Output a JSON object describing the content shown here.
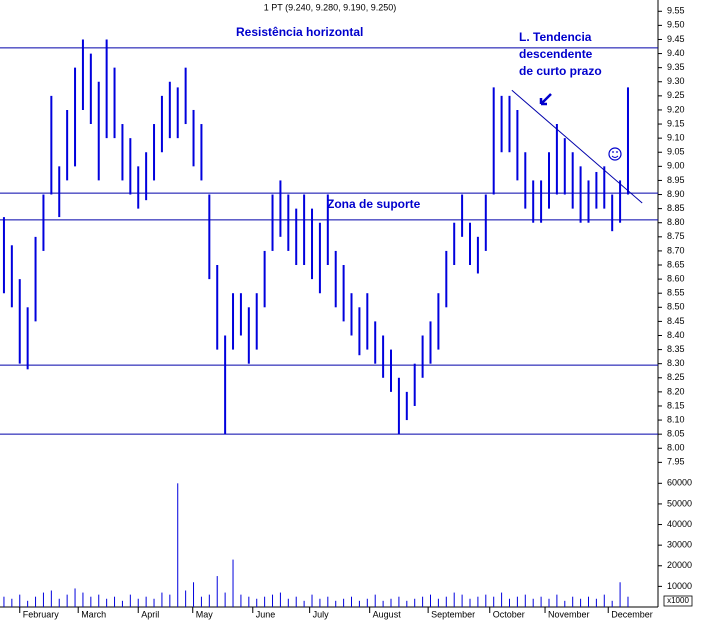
{
  "chart_data": {
    "type": "stock",
    "title": "1 PT (9.240, 9.280, 9.190, 9.250)",
    "annotations": {
      "resistance": "Resistência horizontal",
      "trend": [
        "L. Tendencia",
        "descendente",
        "de curto prazo"
      ],
      "support": "Zona de suporte"
    },
    "volume_unit": "x1000",
    "color": "#0000dd",
    "line_color": "#0000aa",
    "xlim": [
      -0.5,
      82.8
    ],
    "xticks": [
      {
        "value": 2,
        "label": "February"
      },
      {
        "value": 9.4,
        "label": "March"
      },
      {
        "value": 17,
        "label": "April"
      },
      {
        "value": 23.9,
        "label": "May"
      },
      {
        "value": 31.5,
        "label": "June"
      },
      {
        "value": 38.7,
        "label": "July"
      },
      {
        "value": 46.3,
        "label": "August"
      },
      {
        "value": 53.7,
        "label": "September"
      },
      {
        "value": 61.5,
        "label": "October"
      },
      {
        "value": 68.5,
        "label": "November"
      },
      {
        "value": 76.5,
        "label": "December"
      }
    ],
    "ylim": [
      7.93,
      9.59
    ],
    "yticks": [
      9.55,
      {
        "value": 9.5,
        "label": "9.50"
      },
      9.45,
      {
        "value": 9.4,
        "label": "9.40"
      },
      9.35,
      {
        "value": 9.3,
        "label": "9.30"
      },
      9.25,
      {
        "value": 9.2,
        "label": "9.20"
      },
      9.15,
      {
        "value": 9.1,
        "label": "9.10"
      },
      9.05,
      {
        "value": 9,
        "label": "9.00"
      },
      8.95,
      {
        "value": 8.9,
        "label": "8.90"
      },
      8.85,
      {
        "value": 8.8,
        "label": "8.80"
      },
      8.75,
      {
        "value": 8.7,
        "label": "8.70"
      },
      8.65,
      {
        "value": 8.6,
        "label": "8.60"
      },
      8.55,
      {
        "value": 8.5,
        "label": "8.50"
      },
      8.45,
      {
        "value": 8.4,
        "label": "8.40"
      },
      8.35,
      {
        "value": 8.3,
        "label": "8.30"
      },
      8.25,
      {
        "value": 8.2,
        "label": "8.20"
      },
      8.15,
      {
        "value": 8.1,
        "label": "8.10"
      },
      8.05,
      {
        "value": 8,
        "label": "8.00"
      },
      7.95
    ],
    "levels": [
      9.42,
      8.905,
      8.81,
      8.295,
      8.05
    ],
    "trendline": {
      "x": [
        64.3,
        80.8
      ],
      "y": [
        9.27,
        8.87
      ]
    },
    "high": [
      8.82,
      8.72,
      8.6,
      8.5,
      8.75,
      8.9,
      9.25,
      9.0,
      9.2,
      9.35,
      9.45,
      9.4,
      9.3,
      9.45,
      9.35,
      9.15,
      9.1,
      9.0,
      9.05,
      9.15,
      9.25,
      9.3,
      9.28,
      9.35,
      9.2,
      9.15,
      8.9,
      8.65,
      8.4,
      8.55,
      8.55,
      8.5,
      8.55,
      8.7,
      8.9,
      8.95,
      8.9,
      8.85,
      8.9,
      8.85,
      8.8,
      8.9,
      8.7,
      8.65,
      8.55,
      8.5,
      8.55,
      8.45,
      8.4,
      8.35,
      8.25,
      8.2,
      8.3,
      8.4,
      8.45,
      8.55,
      8.7,
      8.8,
      8.9,
      8.8,
      8.75,
      8.9,
      9.28,
      9.25,
      9.25,
      9.2,
      9.05,
      8.95,
      8.95,
      9.05,
      9.15,
      9.1,
      9.05,
      9.0,
      8.95,
      8.98,
      9.0,
      8.9,
      8.95,
      9.28
    ],
    "low": [
      8.55,
      8.5,
      8.3,
      8.28,
      8.45,
      8.7,
      8.9,
      8.82,
      8.95,
      9.0,
      9.2,
      9.15,
      8.95,
      9.1,
      9.1,
      8.95,
      8.9,
      8.85,
      8.88,
      8.95,
      9.05,
      9.1,
      9.1,
      9.15,
      9.0,
      8.95,
      8.6,
      8.35,
      8.05,
      8.35,
      8.4,
      8.3,
      8.35,
      8.5,
      8.7,
      8.75,
      8.7,
      8.65,
      8.65,
      8.6,
      8.55,
      8.65,
      8.5,
      8.45,
      8.4,
      8.33,
      8.35,
      8.3,
      8.25,
      8.2,
      8.05,
      8.1,
      8.15,
      8.25,
      8.3,
      8.35,
      8.5,
      8.65,
      8.75,
      8.65,
      8.62,
      8.7,
      8.9,
      9.05,
      9.05,
      8.95,
      8.85,
      8.8,
      8.8,
      8.85,
      8.9,
      8.9,
      8.85,
      8.8,
      8.8,
      8.85,
      8.85,
      8.77,
      8.8,
      8.9
    ],
    "volume": [
      5000,
      4000,
      6000,
      3000,
      5000,
      7000,
      8000,
      4000,
      6000,
      9000,
      7000,
      5000,
      6000,
      4000,
      5000,
      3000,
      6000,
      4000,
      5000,
      4000,
      7000,
      6000,
      60000,
      8000,
      12000,
      5000,
      6000,
      15000,
      7000,
      23000,
      6000,
      5000,
      4000,
      5000,
      6000,
      7000,
      4000,
      5000,
      3000,
      6000,
      4000,
      5000,
      3000,
      4000,
      5000,
      3000,
      4000,
      6000,
      3000,
      4000,
      5000,
      3000,
      4000,
      5000,
      6000,
      4000,
      5000,
      7000,
      6000,
      4000,
      5000,
      6000,
      5000,
      7000,
      4000,
      5000,
      6000,
      4000,
      5000,
      4000,
      6000,
      3000,
      5000,
      4000,
      5000,
      4000,
      6000,
      3000,
      12000,
      5000
    ],
    "vlim": [
      0,
      65000
    ],
    "vticks": [
      60000,
      50000,
      40000,
      30000,
      20000,
      10000
    ]
  }
}
